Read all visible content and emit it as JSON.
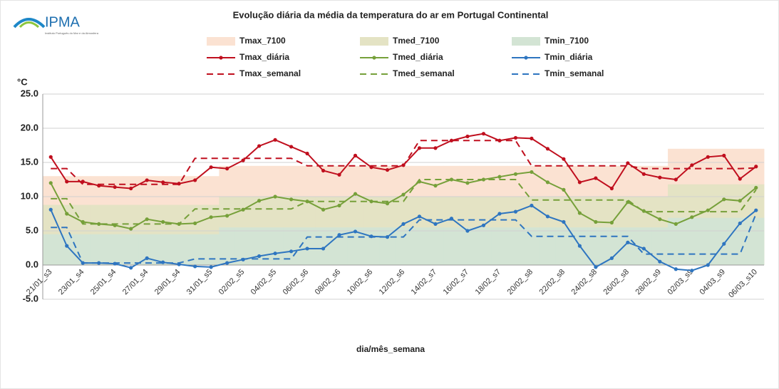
{
  "chart_data": {
    "type": "line",
    "logo": "IPMA",
    "logo_subtitle": "Instituto Português do Mar e da Atmosfera",
    "title": "Evolução diária da média da temperatura do ar em Portugal Continental",
    "y_label": "°C",
    "x_label": "dia/mês_semana",
    "categories": [
      "21/01_s3",
      null,
      "23/01_s4",
      null,
      "25/01_s4",
      null,
      "27/01_s4",
      null,
      "29/01_s4",
      null,
      "31/01_s5",
      null,
      "02/02_s5",
      null,
      "04/02_s5",
      null,
      "06/02_s6",
      null,
      "08/02_s6",
      null,
      "10/02_s6",
      null,
      "12/02_s6",
      null,
      "14/02_s7",
      null,
      "16/02_s7",
      null,
      "18/02_s7",
      null,
      "20/02_s8",
      null,
      "22/02_s8",
      null,
      "24/02_s8",
      null,
      "26/02_s8",
      null,
      "28/02_s9",
      null,
      "02/03_s9",
      null,
      "04/03_s9",
      null,
      "06/03_s10"
    ],
    "ylim": [
      -5,
      25
    ],
    "yticks": [
      {
        "value": -5,
        "label": "-5.0"
      },
      {
        "value": 0,
        "label": "0.0"
      },
      {
        "value": 5,
        "label": "5.0"
      },
      {
        "value": 10,
        "label": "10.0"
      },
      {
        "value": 15,
        "label": "15.0"
      },
      {
        "value": 20,
        "label": "20.0"
      },
      {
        "value": 25,
        "label": "25.0"
      }
    ],
    "grid": true,
    "series": [
      {
        "name": "Tmax_7100",
        "style": "area",
        "color": "#fbe2d2",
        "values": [
          13,
          13,
          13,
          13,
          13,
          13,
          13,
          13,
          13,
          13,
          13,
          14.5,
          14.5,
          14.5,
          14.5,
          14.5,
          14.5,
          14.5,
          14.5,
          14.5,
          14.5,
          14.5,
          14.5,
          14.5,
          14.5,
          14.5,
          14.5,
          14.5,
          14.5,
          14.5,
          14.5,
          14.5,
          14.5,
          14.5,
          14.5,
          14.5,
          14.5,
          14.5,
          14.5,
          17,
          17,
          17,
          17,
          17,
          17
        ]
      },
      {
        "name": "Tmed_7100",
        "style": "area",
        "color": "#e4e3c4",
        "values": [
          8.8,
          8.8,
          8.8,
          8.8,
          8.8,
          8.8,
          8.8,
          8.8,
          8.8,
          8.8,
          8.8,
          10,
          10,
          10,
          10,
          10,
          10,
          10,
          10,
          10,
          10,
          10,
          10,
          10,
          10,
          10,
          10,
          10,
          10,
          10,
          10,
          10,
          10,
          10,
          10,
          10,
          10,
          10,
          10,
          11.8,
          11.8,
          11.8,
          11.8,
          11.8,
          11.8
        ]
      },
      {
        "name": "Tmin_7100",
        "style": "area",
        "color": "#d3e4d4",
        "values": [
          4.5,
          4.5,
          4.5,
          4.5,
          4.5,
          4.5,
          4.5,
          4.5,
          4.5,
          4.5,
          4.5,
          5.5,
          5.5,
          5.5,
          5.5,
          5.5,
          5.5,
          5.5,
          5.5,
          5.5,
          5.5,
          5.5,
          5.5,
          5.5,
          5.5,
          5.5,
          5.5,
          5.5,
          5.5,
          5.5,
          5.5,
          5.5,
          5.5,
          5.5,
          5.5,
          5.5,
          5.5,
          5.5,
          5.5,
          6.9,
          6.9,
          6.9,
          6.9,
          6.9,
          6.9
        ]
      },
      {
        "name": "Tmax_diária",
        "style": "marker",
        "color": "#c00f1e",
        "values": [
          15.8,
          12.2,
          12.2,
          11.6,
          11.4,
          11.2,
          12.4,
          12.1,
          11.9,
          12.4,
          14.3,
          14.1,
          15.3,
          17.4,
          18.3,
          17.3,
          16.3,
          13.8,
          13.2,
          16.0,
          14.3,
          13.9,
          14.6,
          17.1,
          17.1,
          18.2,
          18.8,
          19.2,
          18.2,
          18.6,
          18.5,
          17.0,
          15.5,
          12.1,
          12.7,
          11.2,
          14.9,
          13.3,
          12.8,
          12.5,
          14.6,
          15.8,
          16.0,
          12.6,
          14.4
        ]
      },
      {
        "name": "Tmed_diária",
        "style": "marker",
        "color": "#76a03a",
        "values": [
          12.0,
          7.5,
          6.3,
          6.0,
          5.8,
          5.3,
          6.7,
          6.3,
          6.0,
          6.1,
          7.0,
          7.2,
          8.1,
          9.4,
          10.0,
          9.6,
          9.3,
          8.1,
          8.7,
          10.4,
          9.3,
          9.0,
          10.3,
          12.2,
          11.6,
          12.5,
          12.0,
          12.5,
          12.9,
          13.3,
          13.6,
          12.1,
          11.0,
          7.6,
          6.3,
          6.2,
          9.2,
          7.9,
          6.7,
          6.0,
          7.0,
          8.0,
          9.6,
          9.4,
          11.3
        ]
      },
      {
        "name": "Tmin_diária",
        "style": "marker",
        "color": "#2e75c0",
        "values": [
          8.1,
          2.8,
          0.3,
          0.3,
          0.2,
          -0.4,
          1.0,
          0.4,
          0.1,
          -0.2,
          -0.3,
          0.3,
          0.8,
          1.3,
          1.7,
          2.0,
          2.4,
          2.4,
          4.4,
          4.9,
          4.2,
          4.1,
          6.0,
          7.1,
          6.0,
          6.8,
          5.0,
          5.8,
          7.5,
          7.8,
          8.7,
          7.1,
          6.3,
          2.8,
          -0.3,
          1.0,
          3.3,
          2.4,
          0.5,
          -0.6,
          -0.8,
          0.0,
          3.1,
          6.1,
          8.0
        ]
      },
      {
        "name": "Tmax_semanal",
        "style": "dashed",
        "color": "#c00f1e",
        "values": [
          14.1,
          14.1,
          11.8,
          11.8,
          11.8,
          11.8,
          11.8,
          11.8,
          11.8,
          15.6,
          15.6,
          15.6,
          15.6,
          15.6,
          15.6,
          15.6,
          14.5,
          14.5,
          14.5,
          14.5,
          14.5,
          14.5,
          14.5,
          18.2,
          18.2,
          18.2,
          18.2,
          18.2,
          18.2,
          18.2,
          14.5,
          14.5,
          14.5,
          14.5,
          14.5,
          14.5,
          14.5,
          14.1,
          14.1,
          14.1,
          14.1,
          14.1,
          14.1,
          14.1,
          14.2
        ]
      },
      {
        "name": "Tmed_semanal",
        "style": "dashed",
        "color": "#76a03a",
        "values": [
          9.7,
          9.7,
          6.0,
          6.0,
          6.0,
          6.0,
          6.0,
          6.0,
          6.0,
          8.2,
          8.2,
          8.2,
          8.2,
          8.2,
          8.2,
          8.2,
          9.3,
          9.3,
          9.3,
          9.3,
          9.3,
          9.3,
          9.3,
          12.5,
          12.5,
          12.5,
          12.5,
          12.5,
          12.5,
          12.5,
          9.5,
          9.5,
          9.5,
          9.5,
          9.5,
          9.5,
          9.5,
          7.8,
          7.8,
          7.8,
          7.8,
          7.8,
          7.8,
          7.8,
          11.0
        ]
      },
      {
        "name": "Tmin_semanal",
        "style": "dashed",
        "color": "#2e75c0",
        "values": [
          5.5,
          5.5,
          0.3,
          0.3,
          0.3,
          0.3,
          0.3,
          0.3,
          0.3,
          0.9,
          0.9,
          0.9,
          0.9,
          0.9,
          0.9,
          0.9,
          4.1,
          4.1,
          4.1,
          4.1,
          4.1,
          4.1,
          4.1,
          6.6,
          6.6,
          6.6,
          6.6,
          6.6,
          6.6,
          6.6,
          4.2,
          4.2,
          4.2,
          4.2,
          4.2,
          4.2,
          4.2,
          1.6,
          1.6,
          1.6,
          1.6,
          1.6,
          1.6,
          1.6,
          7.5
        ]
      }
    ]
  }
}
